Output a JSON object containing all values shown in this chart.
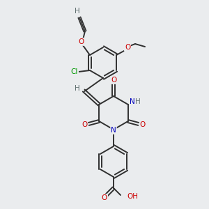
{
  "bg_color": "#eaecee",
  "atom_colors": {
    "C": "#303030",
    "O": "#cc0000",
    "N": "#0000bb",
    "Cl": "#009900",
    "H": "#607070"
  },
  "bond_color": "#303030",
  "bond_lw": 1.4,
  "figsize": [
    3.0,
    3.0
  ],
  "dpi": 100
}
